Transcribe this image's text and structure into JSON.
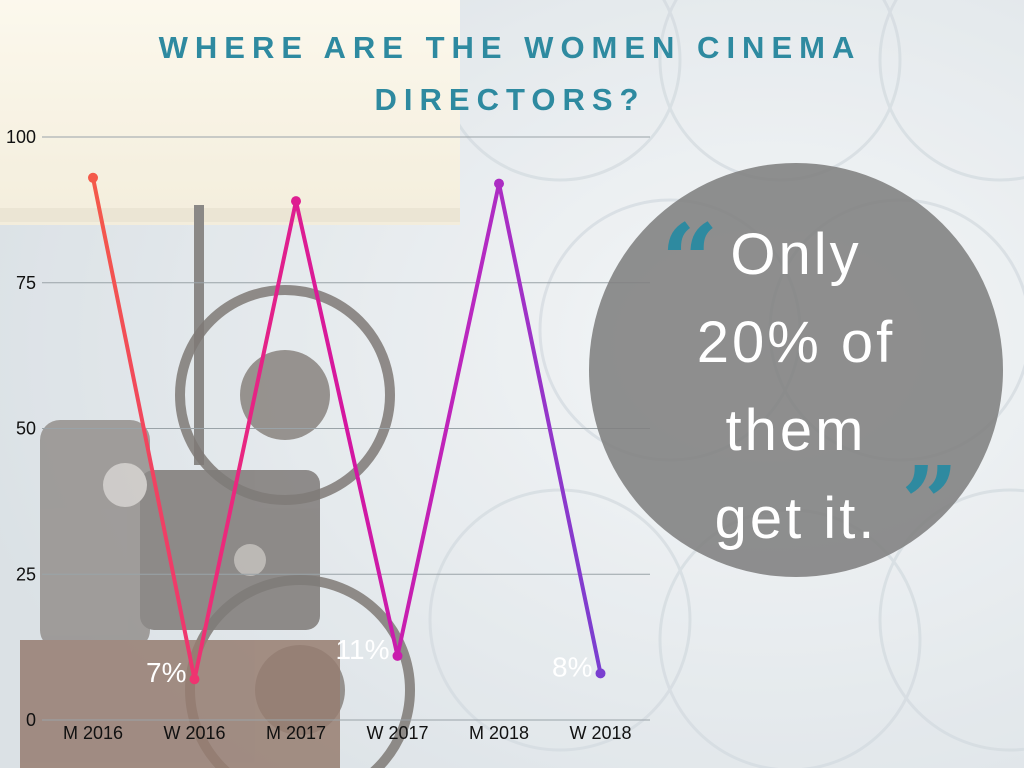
{
  "title_lines": [
    "WHERE ARE THE WOMEN CINEMA",
    "DIRECTORS?"
  ],
  "quote": {
    "open_mark": "“",
    "close_mark": "”",
    "lines": [
      "Only",
      "20% of",
      "them",
      "get it."
    ]
  },
  "colors": {
    "title": "#2e8aa0",
    "quote_marks": "#2e8aa0",
    "bubble": "#808080",
    "series_gradient": [
      "#f45a4a",
      "#ec2a7a",
      "#d416a0",
      "#b928c0",
      "#7a3fd0"
    ]
  },
  "chart_data": {
    "type": "line",
    "title": "WHERE ARE THE WOMEN CINEMA DIRECTORS?",
    "categories": [
      "M 2016",
      "W 2016",
      "M 2017",
      "W 2017",
      "M 2018",
      "W 2018"
    ],
    "series": [
      {
        "values": [
          93,
          7,
          89,
          11,
          92,
          8
        ]
      }
    ],
    "data_labels": [
      "",
      "7%",
      "",
      "11%",
      "",
      "8%"
    ],
    "y_ticks": [
      0,
      25,
      50,
      75,
      100
    ],
    "ylim": [
      0,
      100
    ],
    "grid": true,
    "legend": "none"
  }
}
